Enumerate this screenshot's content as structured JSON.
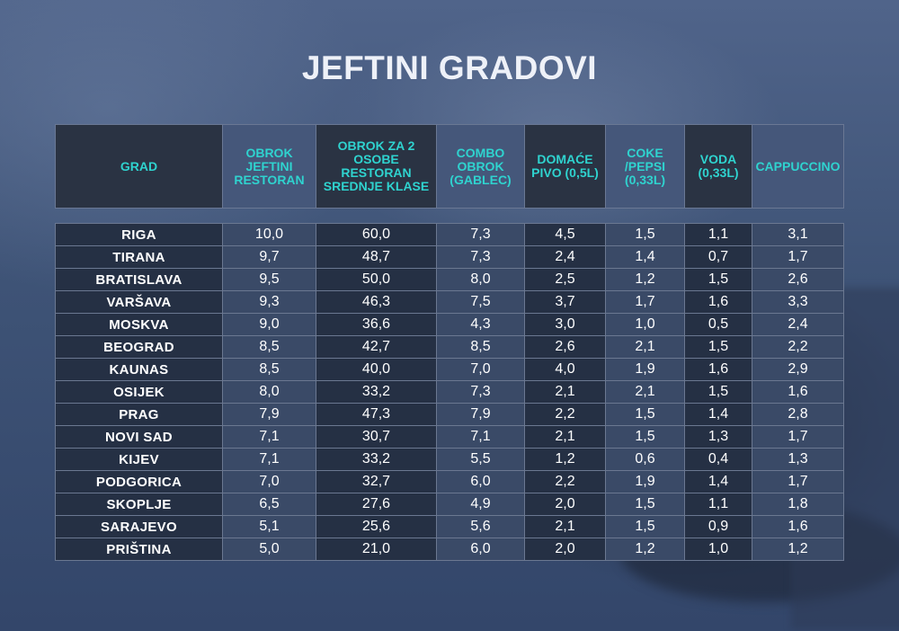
{
  "title": "JEFTINI GRADOVI",
  "chart_data": {
    "type": "table",
    "title": "JEFTINI GRADOVI",
    "columns": [
      "GRAD",
      "OBROK JEFTINI RESTORAN",
      "OBROK ZA 2 OSOBE RESTORAN SREDNJE KLASE",
      "COMBO OBROK (GABLEC)",
      "DOMAĆE PIVO (0,5L)",
      "COKE /PEPSI (0,33L)",
      "VODA (0,33L)",
      "CAPPUCCINO"
    ],
    "rows": [
      [
        "RIGA",
        "10,0",
        "60,0",
        "7,3",
        "4,5",
        "1,5",
        "1,1",
        "3,1"
      ],
      [
        "TIRANA",
        "9,7",
        "48,7",
        "7,3",
        "2,4",
        "1,4",
        "0,7",
        "1,7"
      ],
      [
        "BRATISLAVA",
        "9,5",
        "50,0",
        "8,0",
        "2,5",
        "1,2",
        "1,5",
        "2,6"
      ],
      [
        "VARŠAVA",
        "9,3",
        "46,3",
        "7,5",
        "3,7",
        "1,7",
        "1,6",
        "3,3"
      ],
      [
        "MOSKVA",
        "9,0",
        "36,6",
        "4,3",
        "3,0",
        "1,0",
        "0,5",
        "2,4"
      ],
      [
        "BEOGRAD",
        "8,5",
        "42,7",
        "8,5",
        "2,6",
        "2,1",
        "1,5",
        "2,2"
      ],
      [
        "KAUNAS",
        "8,5",
        "40,0",
        "7,0",
        "4,0",
        "1,9",
        "1,6",
        "2,9"
      ],
      [
        "OSIJEK",
        "8,0",
        "33,2",
        "7,3",
        "2,1",
        "2,1",
        "1,5",
        "1,6"
      ],
      [
        "PRAG",
        "7,9",
        "47,3",
        "7,9",
        "2,2",
        "1,5",
        "1,4",
        "2,8"
      ],
      [
        "NOVI SAD",
        "7,1",
        "30,7",
        "7,1",
        "2,1",
        "1,5",
        "1,3",
        "1,7"
      ],
      [
        "KIJEV",
        "7,1",
        "33,2",
        "5,5",
        "1,2",
        "0,6",
        "0,4",
        "1,3"
      ],
      [
        "PODGORICA",
        "7,0",
        "32,7",
        "6,0",
        "2,2",
        "1,9",
        "1,4",
        "1,7"
      ],
      [
        "SKOPLJE",
        "6,5",
        "27,6",
        "4,9",
        "2,0",
        "1,5",
        "1,1",
        "1,8"
      ],
      [
        "SARAJEVO",
        "5,1",
        "25,6",
        "5,6",
        "2,1",
        "1,5",
        "0,9",
        "1,6"
      ],
      [
        "PRIŠTINA",
        "5,0",
        "21,0",
        "6,0",
        "2,0",
        "1,2",
        "1,0",
        "1,2"
      ]
    ]
  },
  "colors": {
    "header_text": "#2fd3cf",
    "header_dark": "#2a3343",
    "header_mid": "#45577a",
    "cell_dark": "#253044",
    "cell_mid": "#3a4a67",
    "title_text": "#eef1f8"
  }
}
